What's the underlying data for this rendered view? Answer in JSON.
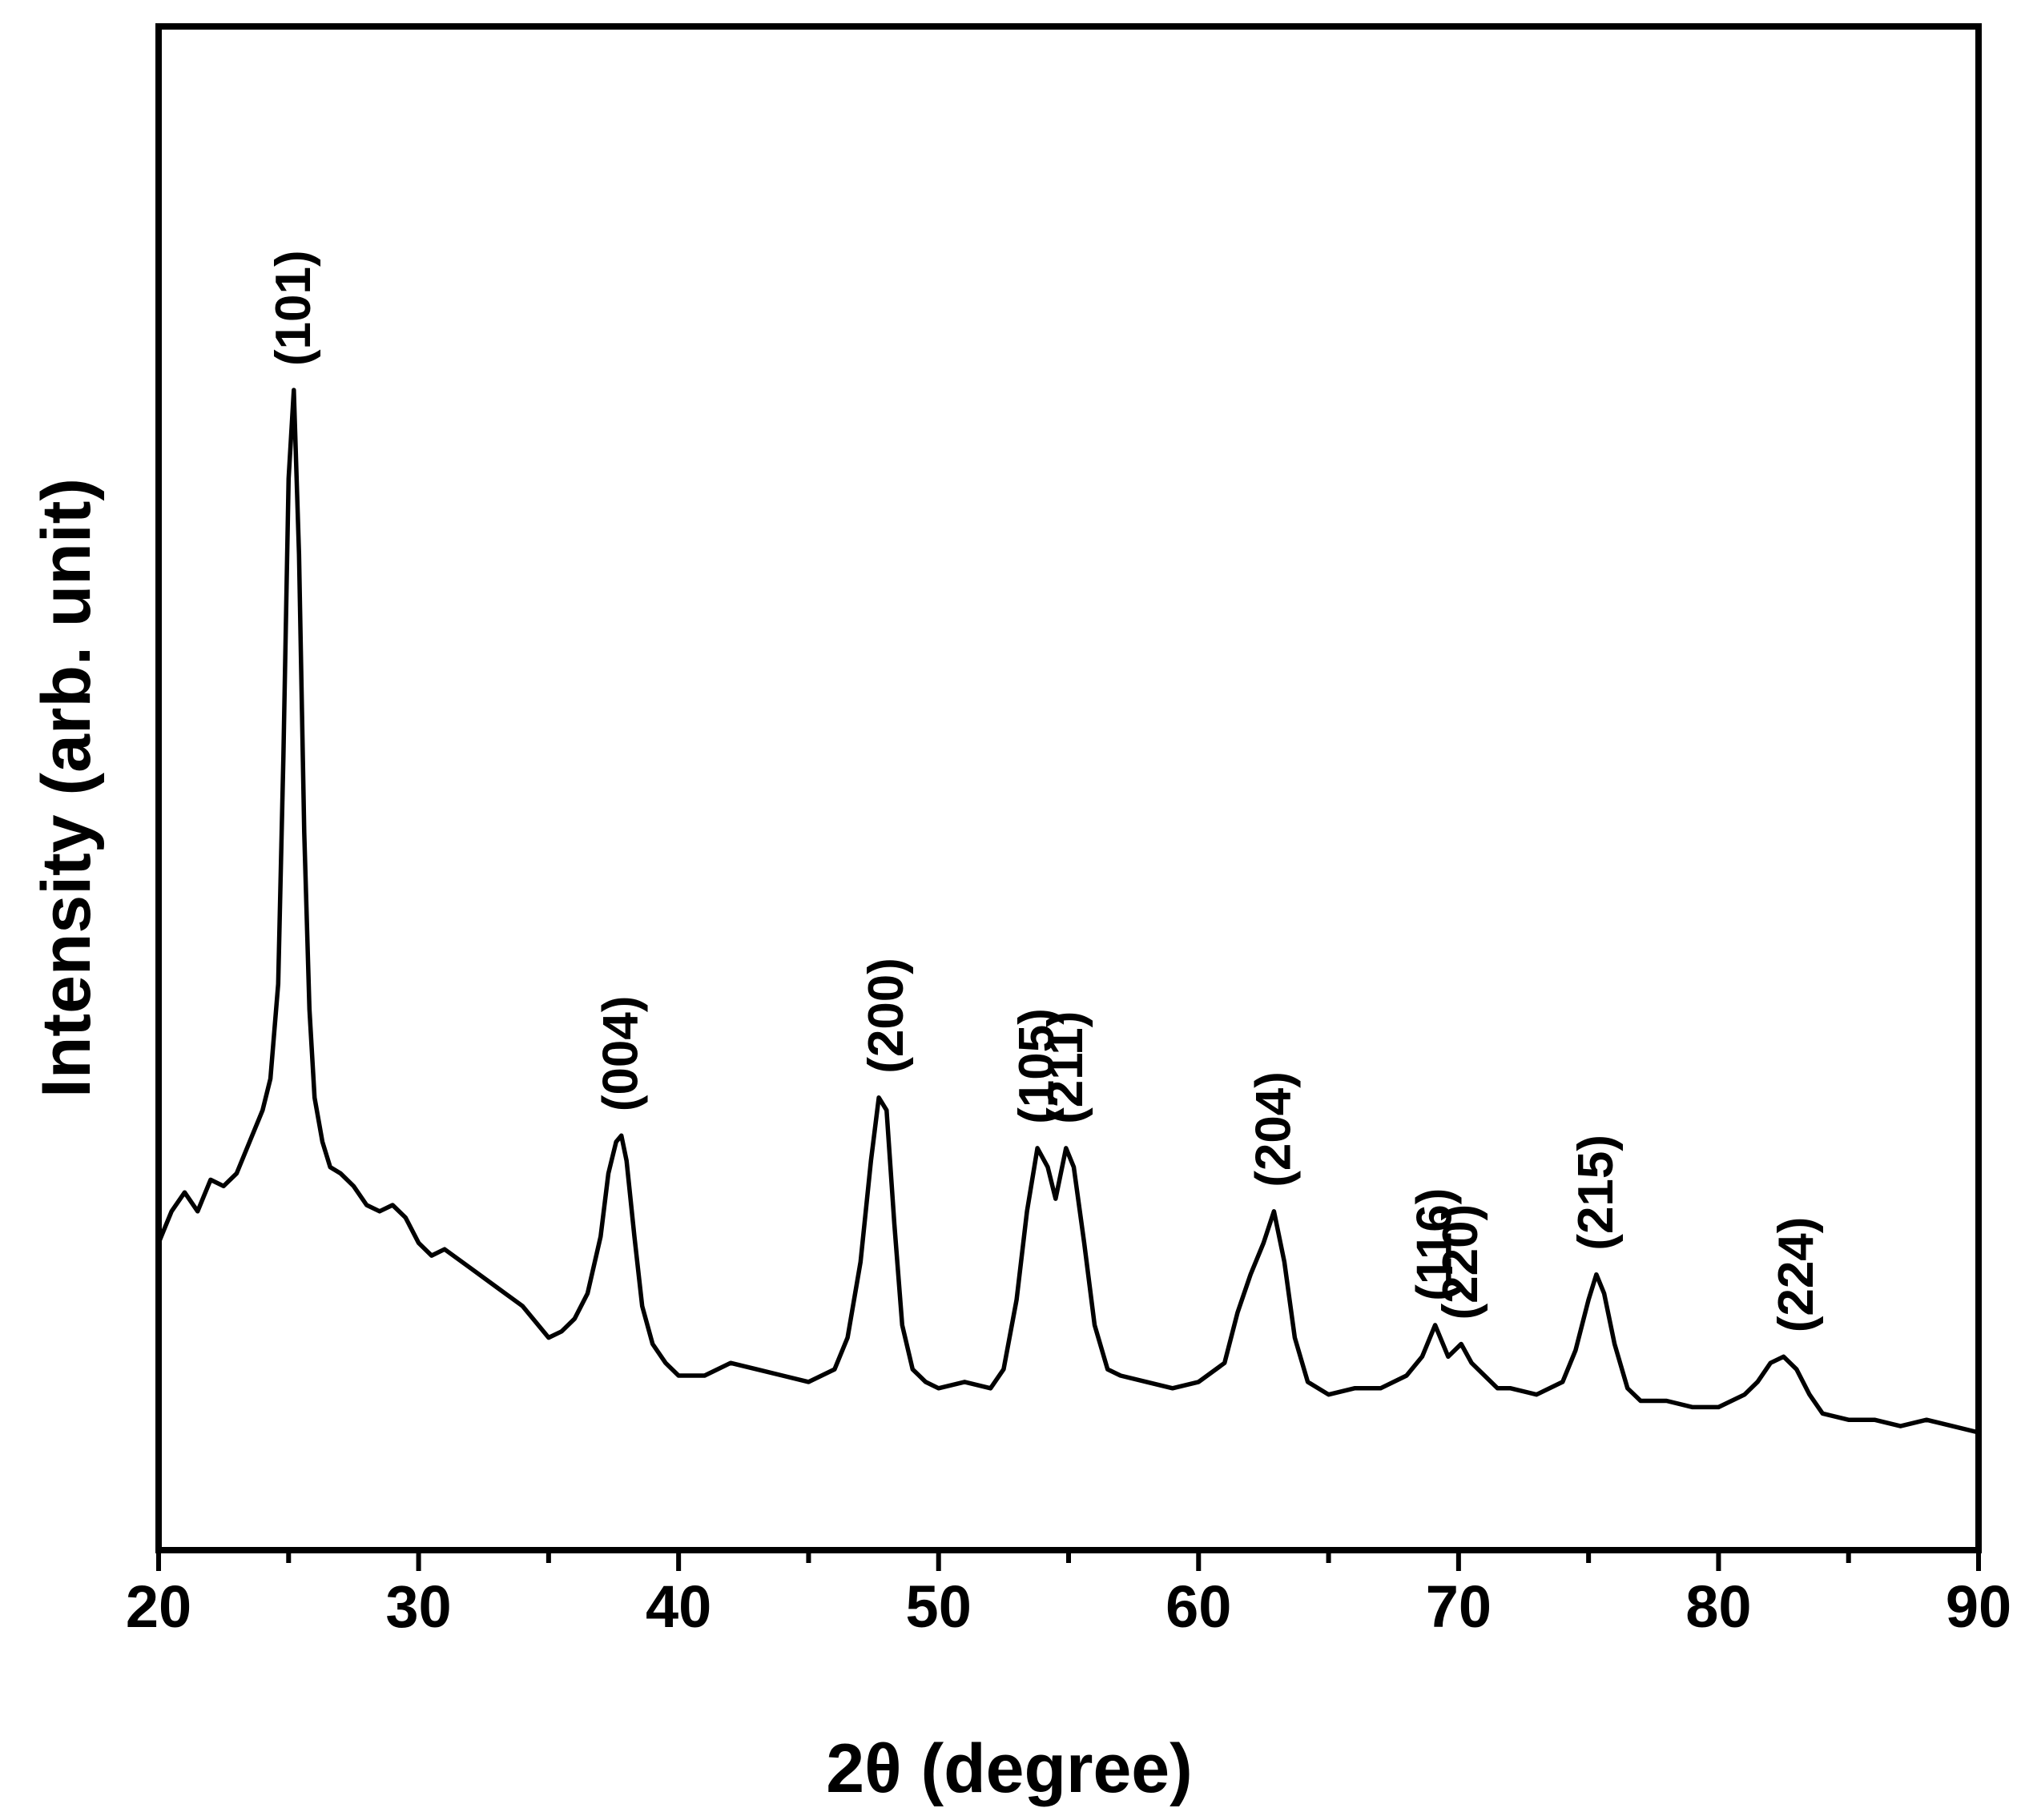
{
  "chart_data": {
    "type": "line",
    "title": "",
    "xlabel": "2θ (degree)",
    "ylabel": "Intensity (arb. unit)",
    "xlim": [
      20,
      90
    ],
    "ylim": [
      0,
      100
    ],
    "xticks": [
      20,
      30,
      40,
      50,
      60,
      70,
      80,
      90
    ],
    "xtick_labels": [
      "20",
      "30",
      "40",
      "50",
      "60",
      "70",
      "80",
      "90"
    ],
    "yticks_shown": false,
    "grid": false,
    "legend": "none",
    "line_color": "#000000",
    "series": [
      {
        "x": [
          20.0,
          20.5,
          21.0,
          21.5,
          22.0,
          22.5,
          23.0,
          23.5,
          24.0,
          24.3,
          24.6,
          24.8,
          25.0,
          25.2,
          25.4,
          25.6,
          25.8,
          26.0,
          26.3,
          26.6,
          27.0,
          27.5,
          28.0,
          28.5,
          29.0,
          29.5,
          30.0,
          30.5,
          31.0,
          32.0,
          33.0,
          34.0,
          35.0,
          35.5,
          36.0,
          36.5,
          37.0,
          37.3,
          37.6,
          37.8,
          38.0,
          38.3,
          38.6,
          39.0,
          39.5,
          40.0,
          41.0,
          42.0,
          43.0,
          44.0,
          45.0,
          46.0,
          46.5,
          47.0,
          47.4,
          47.7,
          48.0,
          48.3,
          48.6,
          49.0,
          49.5,
          50.0,
          51.0,
          52.0,
          52.5,
          53.0,
          53.4,
          53.8,
          54.2,
          54.5,
          54.9,
          55.2,
          55.6,
          56.0,
          56.5,
          57.0,
          58.0,
          59.0,
          60.0,
          61.0,
          61.5,
          62.0,
          62.5,
          62.9,
          63.3,
          63.7,
          64.2,
          65.0,
          66.0,
          67.0,
          68.0,
          68.6,
          69.1,
          69.6,
          70.1,
          70.5,
          71.0,
          71.5,
          72.0,
          73.0,
          74.0,
          74.5,
          75.0,
          75.3,
          75.6,
          76.0,
          76.5,
          77.0,
          78.0,
          79.0,
          80.0,
          81.0,
          81.5,
          82.0,
          82.5,
          83.0,
          83.5,
          84.0,
          85.0,
          86.0,
          87.0,
          88.0,
          89.0,
          90.0
        ],
        "values": [
          19.5,
          22.0,
          23.5,
          22.0,
          24.5,
          24.0,
          25.0,
          27.5,
          30.0,
          32.5,
          40.0,
          58.0,
          80.0,
          87.0,
          74.0,
          52.0,
          38.0,
          31.0,
          27.5,
          25.5,
          25.0,
          24.0,
          22.5,
          22.0,
          22.5,
          21.5,
          19.5,
          18.5,
          19.0,
          17.5,
          16.0,
          14.5,
          12.0,
          12.5,
          13.5,
          15.5,
          20.0,
          25.0,
          27.5,
          28.0,
          26.0,
          20.0,
          14.5,
          11.5,
          10.0,
          9.0,
          9.0,
          10.0,
          9.5,
          9.0,
          8.5,
          9.5,
          12.0,
          18.0,
          26.0,
          31.0,
          30.0,
          21.0,
          13.0,
          9.5,
          8.5,
          8.0,
          8.5,
          8.0,
          9.5,
          15.0,
          22.0,
          27.0,
          25.5,
          23.0,
          27.0,
          25.5,
          19.5,
          13.0,
          9.5,
          9.0,
          8.5,
          8.0,
          8.5,
          10.0,
          14.0,
          17.0,
          19.5,
          22.0,
          18.0,
          12.0,
          8.5,
          7.5,
          8.0,
          8.0,
          9.0,
          10.5,
          13.0,
          10.5,
          11.5,
          10.0,
          9.0,
          8.0,
          8.0,
          7.5,
          8.5,
          11.0,
          15.0,
          17.0,
          15.5,
          11.5,
          8.0,
          7.0,
          7.0,
          6.5,
          6.5,
          7.5,
          8.5,
          10.0,
          10.5,
          9.5,
          7.5,
          6.0,
          5.5,
          5.5,
          5.0,
          5.5,
          5.0,
          4.5
        ]
      }
    ],
    "annotations": [
      {
        "text": "(101)",
        "x": 25.2,
        "y": 87.0
      },
      {
        "text": "(004)",
        "x": 37.8,
        "y": 28.0
      },
      {
        "text": "(200)",
        "x": 48.0,
        "y": 31.0
      },
      {
        "text": "(105)",
        "x": 53.8,
        "y": 27.0
      },
      {
        "text": "(211)",
        "x": 54.9,
        "y": 27.0
      },
      {
        "text": "(204)",
        "x": 62.9,
        "y": 22.0
      },
      {
        "text": "(116)",
        "x": 69.1,
        "y": 13.0
      },
      {
        "text": "(220)",
        "x": 70.1,
        "y": 11.5
      },
      {
        "text": "(215)",
        "x": 75.3,
        "y": 17.0
      },
      {
        "text": "(224)",
        "x": 83.0,
        "y": 10.5
      }
    ]
  }
}
